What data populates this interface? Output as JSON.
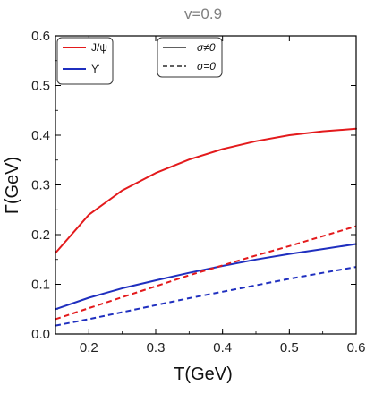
{
  "chart_data": {
    "type": "line",
    "title": "v=0.9",
    "xlabel": "T(GeV)",
    "ylabel": "Γ(GeV)",
    "xlim": [
      0.15,
      0.6
    ],
    "ylim": [
      0.0,
      0.6
    ],
    "x_ticks": [
      "0.2",
      "0.3",
      "0.4",
      "0.5",
      "0.6"
    ],
    "y_ticks": [
      "0.0",
      "0.1",
      "0.2",
      "0.3",
      "0.4",
      "0.5",
      "0.6"
    ],
    "grid": false,
    "legends": [
      {
        "placement": "top-left",
        "entries": [
          {
            "label": "J/ψ",
            "color": "#e31a1c",
            "dash": "solid"
          },
          {
            "label": "ϒ",
            "color": "#1f2fbf",
            "dash": "solid"
          }
        ]
      },
      {
        "placement": "top-center",
        "entries": [
          {
            "label": "σ≠0",
            "color": "#000000",
            "dash": "solid"
          },
          {
            "label": "σ=0",
            "color": "#000000",
            "dash": "dashed"
          }
        ]
      }
    ],
    "x": [
      0.15,
      0.2,
      0.25,
      0.3,
      0.35,
      0.4,
      0.45,
      0.5,
      0.55,
      0.6
    ],
    "series": [
      {
        "particle": "J/ψ",
        "sigma": "σ≠0",
        "color": "#e31a1c",
        "dash": "solid",
        "values": [
          0.163,
          0.24,
          0.289,
          0.324,
          0.351,
          0.372,
          0.388,
          0.4,
          0.408,
          0.413
        ]
      },
      {
        "particle": "ϒ",
        "sigma": "σ≠0",
        "color": "#1f2fbf",
        "dash": "solid",
        "values": [
          0.05,
          0.073,
          0.092,
          0.108,
          0.123,
          0.137,
          0.15,
          0.161,
          0.171,
          0.181
        ]
      },
      {
        "particle": "J/ψ",
        "sigma": "σ=0",
        "color": "#e31a1c",
        "dash": "dashed",
        "values": [
          0.03,
          0.052,
          0.074,
          0.096,
          0.118,
          0.138,
          0.158,
          0.177,
          0.197,
          0.217
        ]
      },
      {
        "particle": "ϒ",
        "sigma": "σ=0",
        "color": "#1f2fbf",
        "dash": "dashed",
        "values": [
          0.017,
          0.03,
          0.044,
          0.058,
          0.072,
          0.085,
          0.098,
          0.111,
          0.123,
          0.135
        ]
      }
    ]
  }
}
